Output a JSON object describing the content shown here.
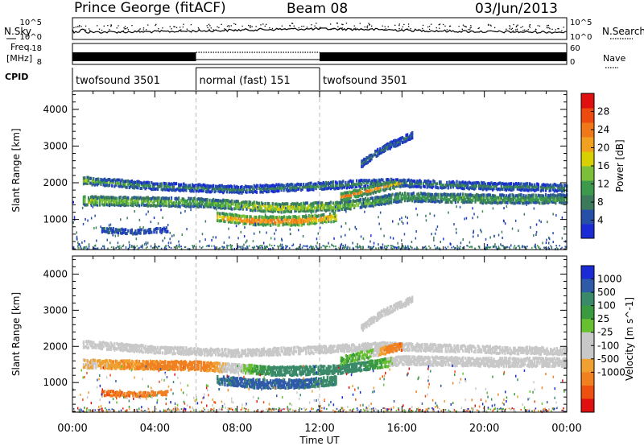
{
  "header": {
    "title": "Prince George (fitACF)",
    "beam": "Beam 08",
    "date": "03/Jun/2013"
  },
  "strip_labels": {
    "nsky": "N.Sky",
    "nsearch": "N.Search",
    "freq_line1": "Freq.",
    "freq_line2": "[MHz]",
    "nave": "Nave",
    "cpid": "CPID"
  },
  "strip_ticks": {
    "noise_left": [
      "10^5",
      "10^0"
    ],
    "noise_right": [
      "10^5",
      "10^0"
    ],
    "freq_left": [
      "18",
      "8"
    ],
    "nave_right": [
      "60",
      "0"
    ]
  },
  "cpid_segments": [
    {
      "label": "twofsound 3501",
      "start_hour": 0,
      "end_hour": 6
    },
    {
      "label": "normal (fast) 151",
      "start_hour": 6,
      "end_hour": 12
    },
    {
      "label": "twofsound 3501",
      "start_hour": 12,
      "end_hour": 24
    }
  ],
  "chart_data": [
    {
      "type": "heatmap",
      "name": "power-panel",
      "xlabel": "Time UT",
      "ylabel": "Slant Range [km]",
      "xlim": [
        0,
        24
      ],
      "ylim": [
        180,
        4500
      ],
      "x_ticks": [
        "00:00",
        "04:00",
        "08:00",
        "12:00",
        "16:00",
        "20:00",
        "00:00"
      ],
      "y_ticks": [
        1000,
        2000,
        3000,
        4000
      ],
      "colorbar": {
        "label": "Power [dB]",
        "ticks": [
          4,
          8,
          12,
          16,
          20,
          24,
          28
        ],
        "range": [
          0,
          32
        ],
        "colors": [
          "#1a2bd6",
          "#2650a8",
          "#3c7a5c",
          "#3d9a4d",
          "#7cc03a",
          "#d8d000",
          "#f2a020",
          "#f07818",
          "#ee4a10",
          "#e01010"
        ]
      },
      "bands": [
        {
          "t": [
            0.5,
            6,
            10,
            13,
            16,
            20,
            24
          ],
          "range": [
            1500,
            1450,
            1300,
            1350,
            1600,
            1550,
            1550
          ],
          "width": 260,
          "level": [
            18,
            14,
            20,
            16,
            12,
            13,
            13
          ]
        },
        {
          "t": [
            0.5,
            4,
            8,
            12,
            15,
            20,
            24
          ],
          "range": [
            2050,
            1900,
            1800,
            1900,
            2000,
            1900,
            1850
          ],
          "width": 220,
          "level": [
            14,
            9,
            8,
            9,
            8,
            8,
            9
          ]
        },
        {
          "t": [
            1.4,
            3,
            4.6
          ],
          "range": [
            700,
            650,
            700
          ],
          "width": 160,
          "level": [
            10,
            9,
            8
          ]
        },
        {
          "t": [
            7,
            9,
            11,
            12.8
          ],
          "range": [
            1050,
            950,
            950,
            1050
          ],
          "width": 260,
          "level": [
            24,
            28,
            27,
            22
          ]
        },
        {
          "t": [
            13,
            14.5,
            16
          ],
          "range": [
            1600,
            1800,
            2000
          ],
          "width": 240,
          "level": [
            24,
            22,
            18
          ]
        },
        {
          "t": [
            14,
            15,
            16.5
          ],
          "range": [
            2500,
            2900,
            3300
          ],
          "width": 200,
          "level": [
            8,
            7,
            6
          ]
        }
      ]
    },
    {
      "type": "heatmap",
      "name": "velocity-panel",
      "xlabel": "Time UT",
      "ylabel": "Slant Range [km]",
      "xlim": [
        0,
        24
      ],
      "ylim": [
        180,
        4500
      ],
      "x_ticks": [
        "00:00",
        "04:00",
        "08:00",
        "12:00",
        "16:00",
        "20:00",
        "00:00"
      ],
      "y_ticks": [
        1000,
        2000,
        3000,
        4000
      ],
      "colorbar": {
        "label": "Velocity [m s^-1]",
        "ticks": [
          "1000",
          "500",
          "100",
          "25",
          "-25",
          "-100",
          "-500",
          "-1000"
        ],
        "tick_values": [
          1000,
          500,
          100,
          25,
          -25,
          -100,
          -500,
          -1000
        ],
        "colors": [
          "#1a2bd6",
          "#2e5aa8",
          "#3a8a6a",
          "#3a9a40",
          "#66c030",
          "#c8c8c8",
          "#c8c8c8",
          "#f0a030",
          "#f08020",
          "#ee5010",
          "#e01010"
        ]
      },
      "bands": [
        {
          "t": [
            0.5,
            6,
            10,
            13,
            16,
            20,
            24
          ],
          "range": [
            1500,
            1450,
            1300,
            1350,
            1600,
            1550,
            1550
          ],
          "width": 260,
          "vel": [
            -60,
            -150,
            150,
            200,
            -20,
            0,
            0
          ]
        },
        {
          "t": [
            0.5,
            4,
            8,
            12,
            15,
            20,
            24
          ],
          "range": [
            2050,
            1900,
            1800,
            1900,
            2000,
            1900,
            1850
          ],
          "width": 220,
          "vel": [
            0,
            0,
            0,
            0,
            0,
            0,
            0
          ]
        },
        {
          "t": [
            1.4,
            3,
            4.6
          ],
          "range": [
            700,
            650,
            700
          ],
          "width": 160,
          "vel": [
            -300,
            -250,
            -200
          ]
        },
        {
          "t": [
            7,
            9,
            11,
            12.8
          ],
          "range": [
            1050,
            950,
            950,
            1050
          ],
          "width": 260,
          "vel": [
            300,
            400,
            350,
            200
          ]
        },
        {
          "t": [
            13,
            14.5,
            16
          ],
          "range": [
            1600,
            1800,
            2000
          ],
          "width": 240,
          "vel": [
            60,
            30,
            -300
          ]
        },
        {
          "t": [
            14,
            15,
            16.5
          ],
          "range": [
            2500,
            2900,
            3300
          ],
          "width": 200,
          "vel": [
            0,
            0,
            0
          ]
        }
      ]
    }
  ]
}
